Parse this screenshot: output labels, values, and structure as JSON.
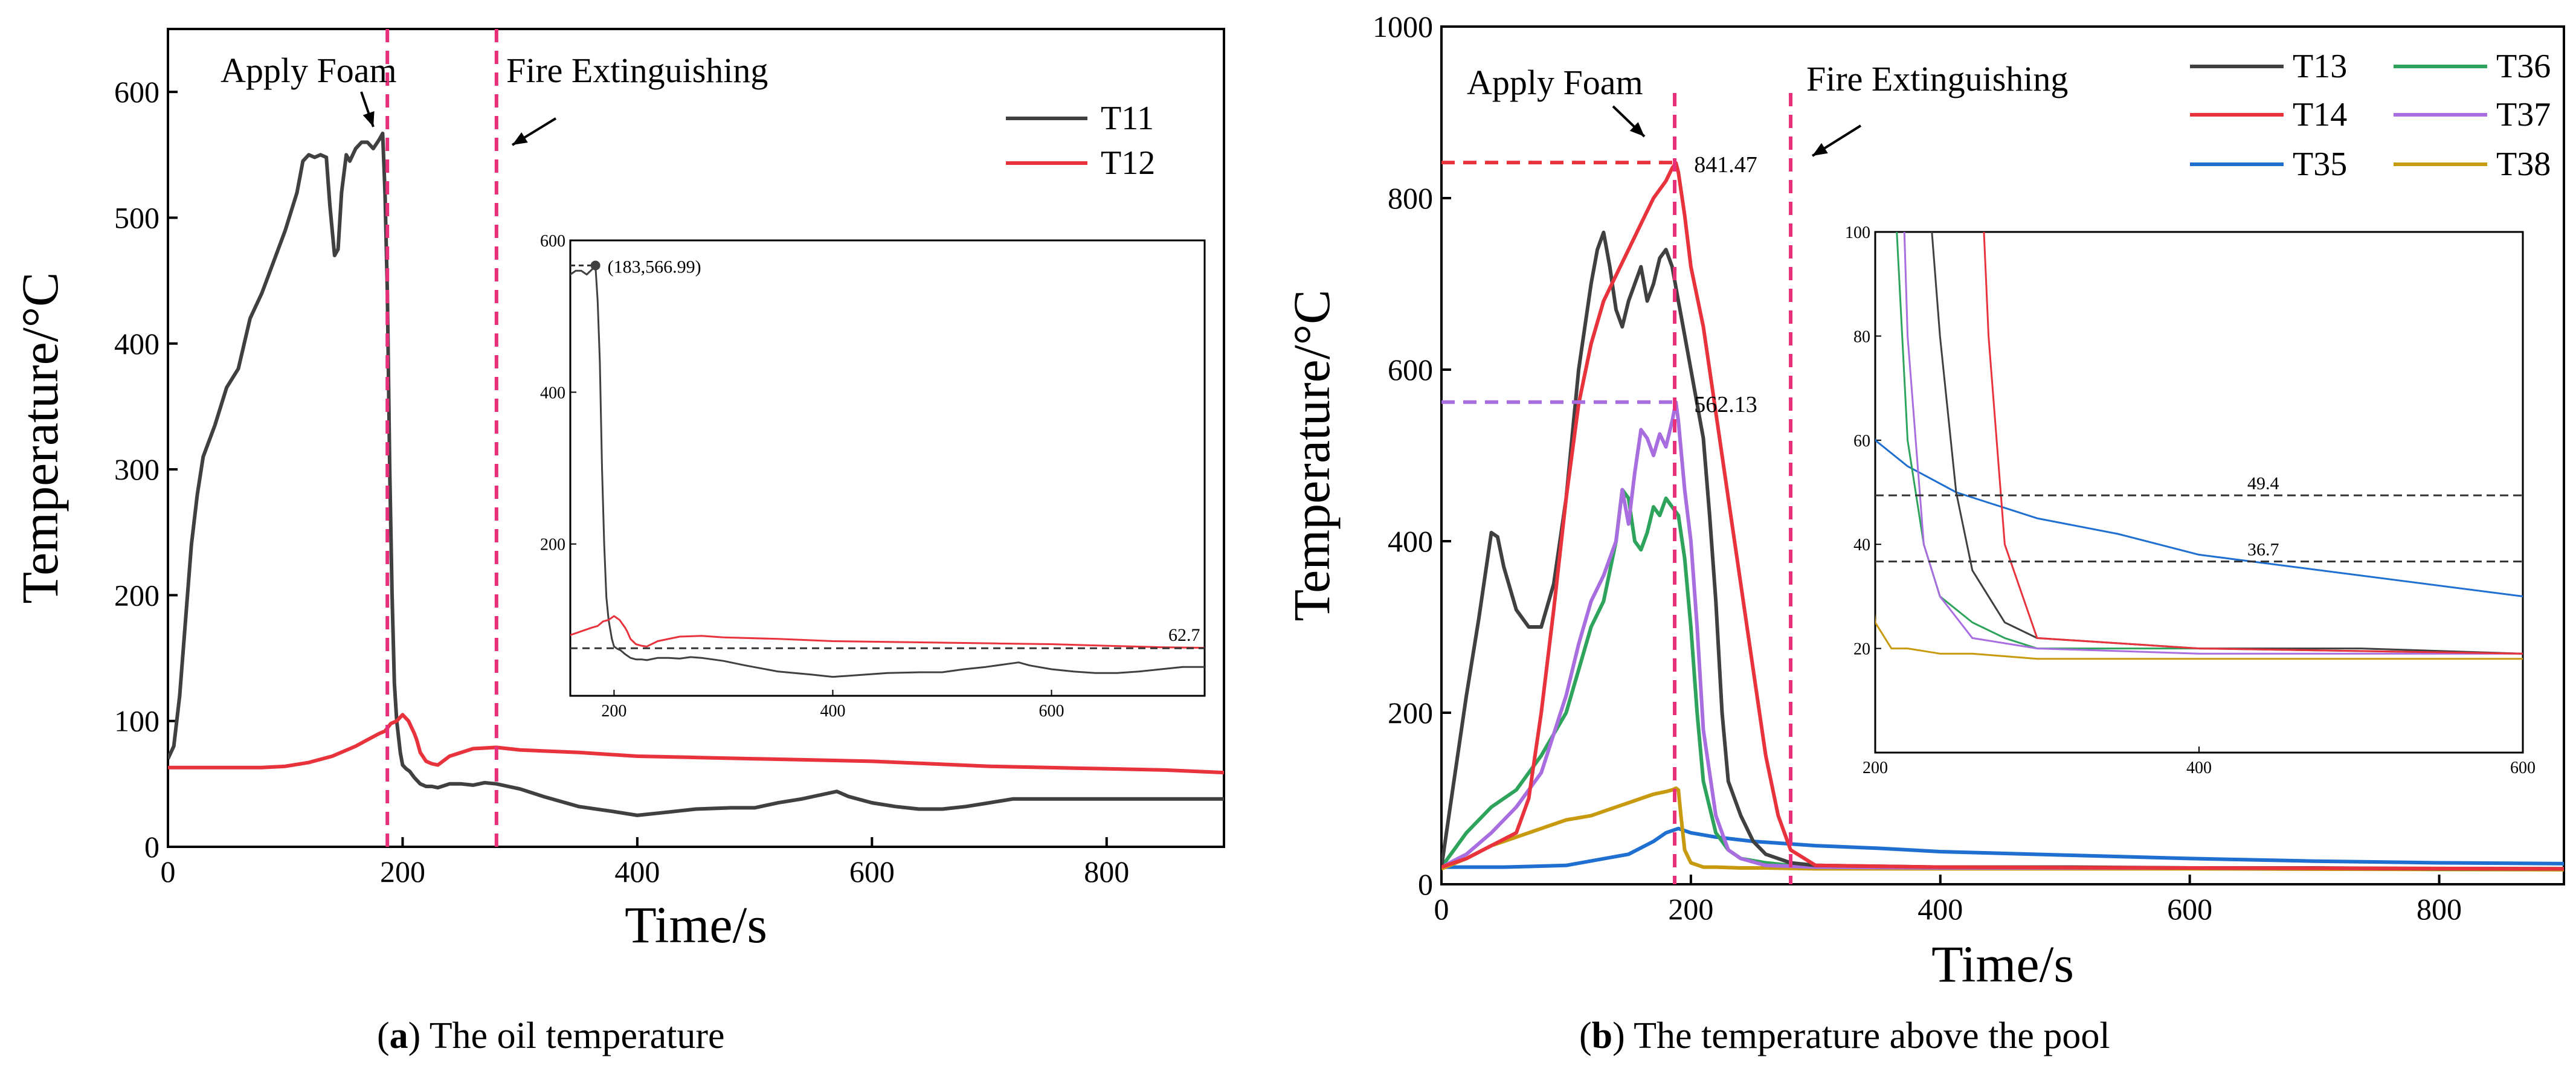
{
  "colors": {
    "T11": "#404040",
    "T12": "#e8323c",
    "T13": "#404040",
    "T14": "#e8323c",
    "T35": "#1f6fd1",
    "T36": "#2ea35c",
    "T37": "#a86ee0",
    "T38": "#c89a10",
    "marker": "#e8307a",
    "ref_black": "#333333",
    "ref_red": "#e8323c",
    "ref_purple": "#a86ee0"
  },
  "captions": {
    "a_label": "a",
    "a_text": "The oil temperature",
    "b_label": "b",
    "b_text": "The temperature above the pool"
  },
  "chart_data": [
    {
      "id": "a",
      "type": "line",
      "xlabel": "Time/s",
      "ylabel": "Temperature/°C",
      "xlim": [
        0,
        900
      ],
      "ylim": [
        0,
        650
      ],
      "xticks": [
        0,
        200,
        400,
        600,
        800
      ],
      "yticks": [
        0,
        100,
        200,
        300,
        400,
        500,
        600
      ],
      "vlines": [
        {
          "x": 187,
          "label": "Apply Foam"
        },
        {
          "x": 280,
          "label": "Fire Extinguishing"
        }
      ],
      "legend": [
        "T11",
        "T12"
      ],
      "series": [
        {
          "name": "T11",
          "x": [
            0,
            5,
            10,
            15,
            20,
            25,
            30,
            40,
            50,
            60,
            70,
            80,
            90,
            100,
            110,
            115,
            120,
            125,
            130,
            135,
            138,
            142,
            145,
            148,
            152,
            155,
            160,
            165,
            170,
            175,
            180,
            183,
            185,
            187,
            189,
            191,
            193,
            195,
            198,
            200,
            203,
            206,
            210,
            215,
            220,
            225,
            230,
            240,
            250,
            260,
            270,
            280,
            290,
            300,
            320,
            350,
            380,
            400,
            420,
            450,
            480,
            500,
            520,
            540,
            560,
            570,
            580,
            600,
            620,
            640,
            660,
            680,
            700,
            720,
            750,
            780,
            800,
            850,
            900
          ],
          "y": [
            70,
            80,
            120,
            180,
            240,
            280,
            310,
            335,
            365,
            380,
            420,
            440,
            465,
            490,
            520,
            545,
            550,
            548,
            550,
            548,
            510,
            470,
            475,
            520,
            550,
            545,
            555,
            560,
            560,
            555,
            562,
            567,
            520,
            440,
            300,
            200,
            130,
            100,
            75,
            65,
            62,
            60,
            55,
            50,
            48,
            48,
            47,
            50,
            50,
            49,
            51,
            50,
            48,
            46,
            40,
            32,
            28,
            25,
            27,
            30,
            31,
            31,
            35,
            38,
            42,
            44,
            40,
            35,
            32,
            30,
            30,
            32,
            35,
            38,
            38,
            38,
            38,
            38,
            38
          ]
        },
        {
          "name": "T12",
          "x": [
            0,
            50,
            80,
            100,
            120,
            140,
            160,
            170,
            180,
            185,
            190,
            195,
            200,
            205,
            210,
            212,
            215,
            220,
            225,
            230,
            240,
            260,
            280,
            300,
            350,
            400,
            450,
            500,
            550,
            600,
            650,
            700,
            750,
            800,
            850,
            900
          ],
          "y": [
            63,
            63,
            63,
            64,
            67,
            72,
            80,
            85,
            90,
            92,
            98,
            100,
            105,
            100,
            90,
            85,
            75,
            68,
            66,
            65,
            72,
            78,
            79,
            77,
            75,
            72,
            71,
            70,
            69,
            68,
            66,
            64,
            63,
            62,
            61,
            59
          ]
        }
      ],
      "inset": {
        "xlim": [
          160,
          740
        ],
        "ylim": [
          0,
          600
        ],
        "xticks": [
          200,
          400,
          600
        ],
        "yticks": [
          200,
          400,
          600
        ],
        "peak_label": "(183,566.99)",
        "peak": [
          183,
          566.99
        ],
        "ref_line": 62.7,
        "ref_label": "62.7"
      }
    },
    {
      "id": "b",
      "type": "line",
      "xlabel": "Time/s",
      "ylabel": "Temperature/°C",
      "xlim": [
        0,
        900
      ],
      "ylim": [
        0,
        1000
      ],
      "xticks": [
        0,
        200,
        400,
        600,
        800
      ],
      "yticks": [
        0,
        200,
        400,
        600,
        800,
        1000
      ],
      "vlines": [
        {
          "x": 187,
          "label": "Apply Foam"
        },
        {
          "x": 280,
          "label": "Fire Extinguishing"
        }
      ],
      "hlines": [
        {
          "y": 841.47,
          "label": "841.47"
        },
        {
          "y": 562.13,
          "label": "562.13"
        }
      ],
      "legend": [
        "T13",
        "T14",
        "T35",
        "T36",
        "T37",
        "T38"
      ],
      "series": [
        {
          "name": "T13",
          "x": [
            0,
            10,
            20,
            30,
            40,
            45,
            50,
            60,
            70,
            80,
            90,
            100,
            110,
            120,
            125,
            130,
            135,
            140,
            145,
            150,
            155,
            160,
            165,
            170,
            175,
            180,
            185,
            190,
            195,
            200,
            205,
            210,
            215,
            220,
            225,
            230,
            240,
            250,
            260,
            280,
            300,
            400,
            500,
            600,
            700,
            800,
            900
          ],
          "y": [
            20,
            120,
            220,
            310,
            410,
            405,
            370,
            320,
            300,
            300,
            350,
            450,
            600,
            700,
            740,
            760,
            720,
            670,
            650,
            680,
            700,
            720,
            680,
            700,
            730,
            740,
            720,
            680,
            640,
            600,
            560,
            520,
            430,
            330,
            200,
            120,
            80,
            50,
            35,
            25,
            22,
            20,
            20,
            19,
            19,
            18,
            18
          ]
        },
        {
          "name": "T14",
          "x": [
            0,
            20,
            40,
            60,
            70,
            80,
            90,
            100,
            110,
            120,
            130,
            140,
            150,
            160,
            170,
            180,
            185,
            188,
            190,
            195,
            200,
            210,
            220,
            230,
            240,
            250,
            260,
            270,
            280,
            300,
            400,
            600,
            900
          ],
          "y": [
            20,
            30,
            45,
            60,
            100,
            200,
            320,
            450,
            560,
            630,
            680,
            710,
            740,
            770,
            800,
            820,
            835,
            841,
            830,
            780,
            720,
            650,
            550,
            450,
            350,
            250,
            150,
            80,
            40,
            22,
            20,
            19,
            18
          ]
        },
        {
          "name": "T35",
          "x": [
            0,
            50,
            100,
            150,
            170,
            180,
            190,
            200,
            220,
            250,
            300,
            350,
            400,
            500,
            600,
            700,
            800,
            900
          ],
          "y": [
            20,
            20,
            22,
            35,
            50,
            60,
            65,
            60,
            55,
            50,
            45,
            42,
            38,
            34,
            30,
            27,
            25,
            24
          ]
        },
        {
          "name": "T36",
          "x": [
            0,
            20,
            40,
            60,
            80,
            100,
            110,
            120,
            130,
            140,
            145,
            150,
            155,
            160,
            165,
            170,
            175,
            180,
            185,
            190,
            195,
            200,
            205,
            210,
            220,
            230,
            240,
            260,
            280,
            300,
            400,
            600,
            900
          ],
          "y": [
            20,
            60,
            90,
            110,
            150,
            200,
            250,
            300,
            330,
            400,
            460,
            450,
            400,
            390,
            410,
            440,
            430,
            450,
            440,
            430,
            380,
            300,
            200,
            120,
            60,
            40,
            30,
            25,
            22,
            20,
            20,
            19,
            18
          ]
        },
        {
          "name": "T37",
          "x": [
            0,
            20,
            40,
            60,
            80,
            100,
            110,
            120,
            130,
            140,
            145,
            150,
            155,
            160,
            165,
            170,
            175,
            180,
            185,
            188,
            190,
            195,
            200,
            205,
            210,
            220,
            230,
            240,
            260,
            300,
            400,
            600,
            900
          ],
          "y": [
            20,
            35,
            60,
            90,
            130,
            220,
            280,
            330,
            360,
            400,
            460,
            420,
            480,
            530,
            520,
            500,
            525,
            510,
            540,
            562,
            540,
            460,
            400,
            300,
            180,
            80,
            40,
            30,
            22,
            20,
            19,
            19,
            18
          ]
        },
        {
          "name": "T38",
          "x": [
            0,
            20,
            40,
            60,
            80,
            100,
            120,
            140,
            150,
            160,
            170,
            180,
            185,
            188,
            190,
            192,
            195,
            200,
            210,
            220,
            240,
            260,
            300,
            400,
            600,
            900
          ],
          "y": [
            18,
            30,
            45,
            55,
            65,
            75,
            80,
            90,
            95,
            100,
            105,
            108,
            110,
            112,
            110,
            80,
            40,
            25,
            20,
            20,
            19,
            19,
            18,
            18,
            18,
            17
          ]
        }
      ],
      "inset": {
        "xlim": [
          200,
          600
        ],
        "ylim": [
          0,
          100
        ],
        "xticks": [
          200,
          400,
          600
        ],
        "yticks": [
          20,
          40,
          60,
          80,
          100
        ],
        "ref_lines": [
          {
            "y": 49.4,
            "label": "49.4"
          },
          {
            "y": 36.7,
            "label": "36.7"
          }
        ]
      }
    }
  ]
}
